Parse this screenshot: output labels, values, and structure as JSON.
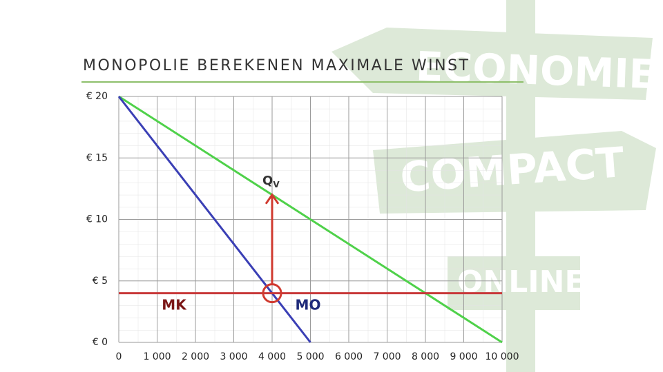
{
  "chart_data": {
    "type": "line",
    "title": "MONOPOLIE BEREKENEN MAXIMALE WINST",
    "watermark": [
      "ECONOMIE",
      "COMPACT",
      "ONLINE"
    ],
    "xlim": [
      0,
      10000
    ],
    "ylim": [
      0,
      20
    ],
    "xticks": [
      0,
      {
        "value": 1000,
        "label": "1 000"
      },
      {
        "value": 2000,
        "label": "2 000"
      },
      {
        "value": 3000,
        "label": "3 000"
      },
      {
        "value": 4000,
        "label": "4 000"
      },
      {
        "value": 5000,
        "label": "5 000"
      },
      {
        "value": 6000,
        "label": "6 000"
      },
      {
        "value": 7000,
        "label": "7 000"
      },
      {
        "value": 8000,
        "label": "8 000"
      },
      {
        "value": 9000,
        "label": "9 000"
      },
      {
        "value": 10000,
        "label": "10 000"
      }
    ],
    "yticks": [
      {
        "value": 0,
        "label": "€ 0"
      },
      {
        "value": 5,
        "label": "€ 5"
      },
      {
        "value": 10,
        "label": "€ 10"
      },
      {
        "value": 15,
        "label": "€ 15"
      },
      {
        "value": 20,
        "label": "€ 20"
      }
    ],
    "grid": true,
    "series": [
      {
        "color": "#4fd14a",
        "x": [
          0,
          10000
        ],
        "values": [
          20,
          0
        ]
      },
      {
        "name": "MO",
        "color": "#3a3fb5",
        "x": [
          0,
          5000
        ],
        "values": [
          20,
          0
        ]
      },
      {
        "name": "MK",
        "color": "#c8393a",
        "x": [
          0,
          10000
        ],
        "values": [
          4,
          4
        ]
      }
    ],
    "annotation": {
      "text": "Q",
      "subscript": "V",
      "x": 4000,
      "y_from": 4,
      "y_to": 12,
      "color": "#d03a2f"
    }
  }
}
